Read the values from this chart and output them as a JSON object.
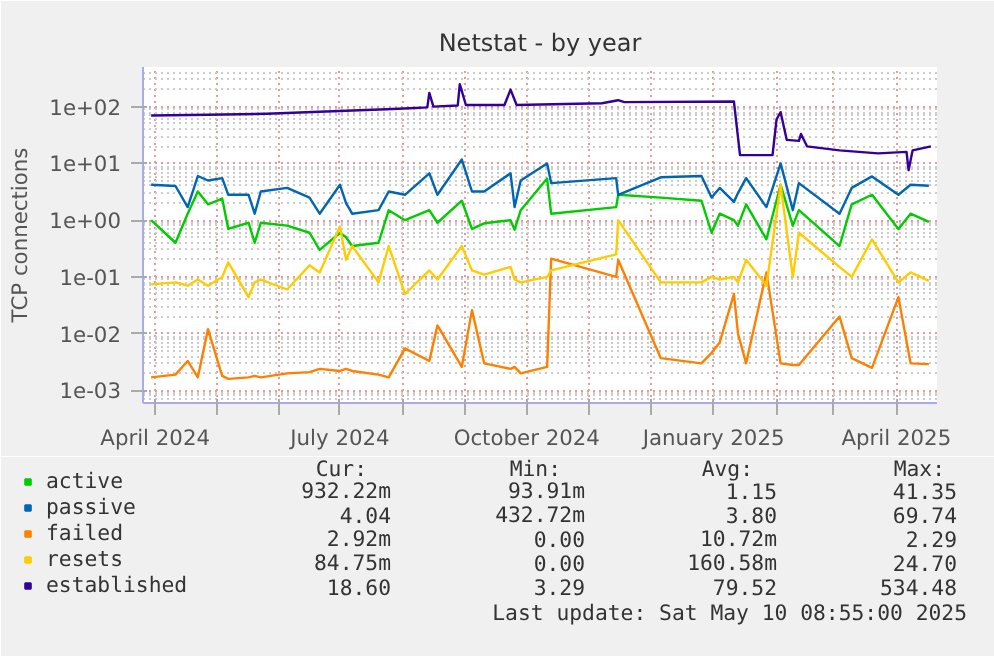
{
  "chart_data": {
    "type": "line",
    "title": "Netstat - by year",
    "ylabel": "TCP connections",
    "log": true,
    "grid": true,
    "legend": "bottom",
    "line_style": "solid",
    "marker": "none",
    "x": [
      "2024-03-30",
      "2024-04-11",
      "2024-04-17",
      "2024-04-22",
      "2024-04-27",
      "2024-05-04",
      "2024-05-07",
      "2024-05-17",
      "2024-05-20",
      "2024-05-23",
      "2024-06-05",
      "2024-06-16",
      "2024-06-21",
      "2024-07-01",
      "2024-07-04",
      "2024-07-07",
      "2024-07-20",
      "2024-07-25",
      "2024-08-02",
      "2024-08-14",
      "2024-08-18",
      "2024-08-30",
      "2024-09-04",
      "2024-09-10",
      "2024-09-23",
      "2024-09-25",
      "2024-09-28",
      "2024-10-11",
      "2024-10-13",
      "2024-11-14",
      "2024-11-15",
      "2024-12-06",
      "2024-12-26",
      "2024-12-31",
      "2025-01-04",
      "2025-01-11",
      "2025-01-13",
      "2025-01-17",
      "2025-01-27",
      "2025-02-03",
      "2025-02-09",
      "2025-02-12",
      "2025-03-04",
      "2025-03-10",
      "2025-03-20",
      "2025-04-02",
      "2025-04-08",
      "2025-04-17"
    ],
    "xlim": [
      "2024-03-26",
      "2025-04-21"
    ],
    "xticks": [
      {
        "value": "2024-04-01",
        "label": "April 2024"
      },
      {
        "value": "2024-05-01",
        "label": null
      },
      {
        "value": "2024-06-01",
        "label": null
      },
      {
        "value": "2024-07-01",
        "label": "July 2024"
      },
      {
        "value": "2024-08-01",
        "label": null
      },
      {
        "value": "2024-09-01",
        "label": null
      },
      {
        "value": "2024-10-01",
        "label": "October 2024"
      },
      {
        "value": "2024-11-01",
        "label": null
      },
      {
        "value": "2024-12-01",
        "label": null
      },
      {
        "value": "2025-01-01",
        "label": "January 2025"
      },
      {
        "value": "2025-02-01",
        "label": null
      },
      {
        "value": "2025-03-01",
        "label": null
      },
      {
        "value": "2025-04-01",
        "label": "April 2025"
      }
    ],
    "ylim": [
      0.0006,
      500
    ],
    "yticks": [
      {
        "value": 0.001,
        "label": "1e-03"
      },
      {
        "value": 0.01,
        "label": "1e-02"
      },
      {
        "value": 0.1,
        "label": "1e-01"
      },
      {
        "value": 1,
        "label": "1e+00"
      },
      {
        "value": 10,
        "label": "1e+01"
      },
      {
        "value": 100,
        "label": "1e+02"
      }
    ],
    "series": [
      {
        "name": "active",
        "color": "#00cc00",
        "values": [
          1.0,
          0.4,
          1.3,
          3.2,
          1.9,
          2.4,
          0.7,
          0.9,
          0.4,
          0.9,
          0.8,
          0.6,
          0.3,
          0.6,
          0.5,
          0.35,
          0.4,
          1.5,
          1.0,
          1.5,
          0.9,
          2.2,
          0.7,
          0.88,
          1.0,
          0.68,
          1.5,
          5.4,
          1.3,
          1.7,
          2.8,
          2.5,
          2.2,
          0.6,
          1.3,
          1.0,
          0.8,
          1.9,
          0.46,
          4.2,
          0.8,
          1.5,
          0.35,
          1.9,
          2.8,
          0.7,
          1.3,
          0.93
        ]
      },
      {
        "name": "passive",
        "color": "#0066b3",
        "values": [
          4.2,
          4.0,
          1.7,
          6,
          5,
          5.5,
          2.8,
          2.8,
          1.3,
          3.2,
          3.7,
          2.5,
          1.3,
          4.2,
          2,
          1.3,
          1.5,
          3.2,
          2.8,
          6.7,
          2.8,
          11.7,
          3.2,
          3.2,
          6.7,
          1.7,
          5,
          10,
          4.5,
          5.5,
          2.8,
          5.7,
          6,
          2.5,
          3.7,
          2.1,
          3,
          5.5,
          1.7,
          10,
          1.5,
          4.5,
          1.3,
          3.7,
          5.9,
          2.8,
          4.2,
          4.04
        ]
      },
      {
        "name": "failed",
        "color": "#ff8000",
        "values": [
          0.0017,
          0.0019,
          0.0033,
          0.0017,
          0.012,
          0.0018,
          0.0016,
          0.0017,
          0.0018,
          0.0017,
          0.002,
          0.0021,
          0.0024,
          0.0022,
          0.0024,
          0.0022,
          0.0019,
          0.0017,
          0.0055,
          0.0033,
          0.014,
          0.0026,
          0.026,
          0.003,
          0.0024,
          0.0026,
          0.002,
          0.0026,
          0.21,
          0.1,
          0.2,
          0.0037,
          0.003,
          0.0046,
          0.007,
          0.05,
          0.01,
          0.003,
          0.12,
          0.003,
          0.0028,
          0.0028,
          0.02,
          0.0037,
          0.0025,
          0.044,
          0.003,
          0.0029
        ]
      },
      {
        "name": "resets",
        "color": "#ffcc00",
        "values": [
          0.074,
          0.08,
          0.07,
          0.09,
          0.07,
          0.1,
          0.18,
          0.044,
          0.08,
          0.09,
          0.06,
          0.16,
          0.12,
          0.77,
          0.2,
          0.35,
          0.08,
          0.35,
          0.05,
          0.13,
          0.09,
          0.35,
          0.13,
          0.11,
          0.15,
          0.09,
          0.08,
          0.1,
          0.13,
          0.25,
          1.0,
          0.08,
          0.08,
          0.1,
          0.09,
          0.1,
          0.08,
          0.2,
          0.07,
          4.2,
          0.1,
          0.6,
          0.15,
          0.1,
          0.46,
          0.08,
          0.12,
          0.085
        ]
      },
      {
        "name": "established",
        "color": "#330099",
        "x": [
          "2024-03-30",
          "2024-04-27",
          "2024-05-26",
          "2024-06-24",
          "2024-07-24",
          "2024-08-07",
          "2024-08-13",
          "2024-08-14",
          "2024-08-16",
          "2024-08-28",
          "2024-08-29",
          "2024-09-01",
          "2024-09-20",
          "2024-09-23",
          "2024-09-26",
          "2024-11-07",
          "2024-11-15",
          "2024-11-18",
          "2025-01-11",
          "2025-01-14",
          "2025-01-30",
          "2025-02-01",
          "2025-02-03",
          "2025-02-06",
          "2025-02-12",
          "2025-02-13",
          "2025-02-16",
          "2025-03-04",
          "2025-03-23",
          "2025-04-06",
          "2025-04-07",
          "2025-04-09",
          "2025-04-18"
        ],
        "values": [
          70,
          72,
          75,
          82,
          90,
          95,
          97,
          175,
          100,
          105,
          250,
          107,
          107,
          200,
          107,
          115,
          130,
          120,
          123,
          14,
          14,
          60,
          80,
          26,
          25,
          33,
          20,
          17,
          15,
          16,
          7.6,
          17,
          20
        ]
      }
    ],
    "annotations": [
      "Cur:",
      "Min:",
      "Avg:",
      "Max:",
      "932.22m",
      "93.91m",
      "1.15",
      "41.35",
      "4.04",
      "432.72m",
      "3.80",
      "69.74",
      "2.92m",
      "0.00",
      "10.72m",
      "2.29",
      "84.75m",
      "0.00",
      "160.58m",
      "24.70",
      "18.60",
      "3.29",
      "79.52",
      "534.48",
      "Last update: Sat May 10 08:55:00 2025"
    ]
  }
}
